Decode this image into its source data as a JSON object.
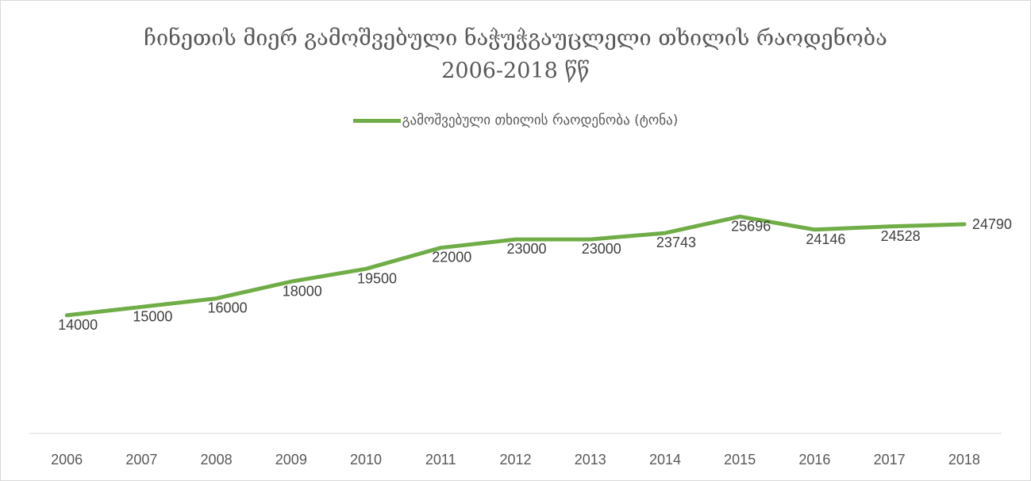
{
  "chart_data": {
    "type": "line",
    "title": "ჩინეთის მიერ გამოშვებული ნაჭუჭგაუცლელი თხილის რაოდენობა",
    "subtitle": "2006-2018 წწ",
    "categories": [
      "2006",
      "2007",
      "2008",
      "2009",
      "2010",
      "2011",
      "2012",
      "2013",
      "2014",
      "2015",
      "2016",
      "2017",
      "2018"
    ],
    "series": [
      {
        "name": "გამოშვებული თხილის რაოდენობა (ტონა)",
        "values": [
          14000,
          15000,
          16000,
          18000,
          19500,
          22000,
          23000,
          23000,
          23743,
          25696,
          24146,
          24528,
          24790
        ],
        "color": "#70ad47"
      }
    ],
    "ylim": [
      0,
      40000
    ],
    "grid": false,
    "legend_position": "top"
  }
}
